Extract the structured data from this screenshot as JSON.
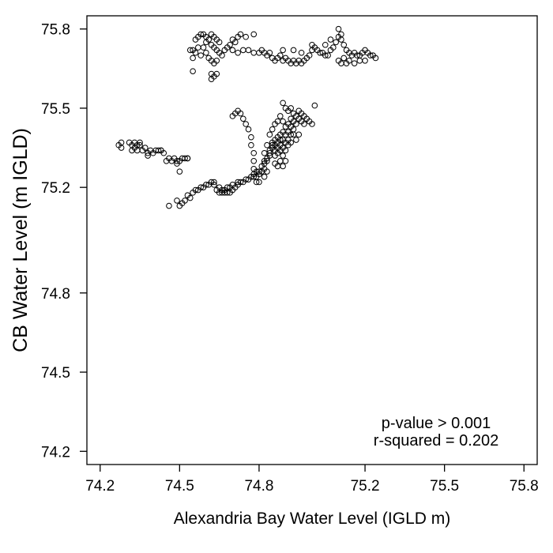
{
  "chart_data": {
    "type": "scatter",
    "title": "",
    "xlabel": "Alexandria Bay Water Level (IGLD m)",
    "ylabel": "CB Water Level (m IGLD)",
    "xlim": [
      74.15,
      75.85
    ],
    "ylim": [
      74.15,
      75.85
    ],
    "xticks": [
      "74.2",
      "74.5",
      "74.8",
      "75.2",
      "75.5",
      "75.8"
    ],
    "yticks": [
      "74.2",
      "74.5",
      "74.8",
      "75.2",
      "75.5",
      "75.8"
    ],
    "grid": false,
    "legend": "none",
    "marker": "open-circle",
    "annotations": [
      "p-value > 0.001",
      "r-squared = 0.202"
    ],
    "series": [
      {
        "points": [
          [
            74.27,
            75.36
          ],
          [
            74.28,
            75.35
          ],
          [
            74.28,
            75.37
          ],
          [
            74.31,
            75.37
          ],
          [
            74.32,
            75.36
          ],
          [
            74.32,
            75.34
          ],
          [
            74.33,
            75.37
          ],
          [
            74.33,
            75.35
          ],
          [
            74.34,
            75.34
          ],
          [
            74.34,
            75.36
          ],
          [
            74.35,
            75.37
          ],
          [
            74.35,
            75.36
          ],
          [
            74.36,
            75.34
          ],
          [
            74.37,
            75.35
          ],
          [
            74.38,
            75.33
          ],
          [
            74.38,
            75.32
          ],
          [
            74.39,
            75.34
          ],
          [
            74.4,
            75.33
          ],
          [
            74.41,
            75.34
          ],
          [
            74.42,
            75.34
          ],
          [
            74.43,
            75.34
          ],
          [
            74.43,
            75.34
          ],
          [
            74.44,
            75.33
          ],
          [
            74.45,
            75.3
          ],
          [
            74.46,
            75.31
          ],
          [
            74.47,
            75.3
          ],
          [
            74.48,
            75.31
          ],
          [
            74.49,
            75.3
          ],
          [
            74.49,
            75.29
          ],
          [
            74.5,
            75.26
          ],
          [
            74.5,
            75.3
          ],
          [
            74.51,
            75.31
          ],
          [
            74.52,
            75.31
          ],
          [
            74.53,
            75.31
          ],
          [
            74.53,
            75.31
          ],
          [
            74.46,
            75.13
          ],
          [
            74.49,
            75.15
          ],
          [
            74.5,
            75.13
          ],
          [
            74.51,
            75.14
          ],
          [
            74.52,
            75.15
          ],
          [
            74.53,
            75.17
          ],
          [
            74.54,
            75.16
          ],
          [
            74.55,
            75.18
          ],
          [
            74.56,
            75.19
          ],
          [
            74.57,
            75.19
          ],
          [
            74.58,
            75.2
          ],
          [
            74.59,
            75.2
          ],
          [
            74.6,
            75.21
          ],
          [
            74.61,
            75.21
          ],
          [
            74.62,
            75.22
          ],
          [
            74.63,
            75.22
          ],
          [
            74.63,
            75.21
          ],
          [
            74.64,
            75.19
          ],
          [
            74.65,
            75.18
          ],
          [
            74.65,
            75.2
          ],
          [
            74.66,
            75.18
          ],
          [
            74.66,
            75.19
          ],
          [
            74.67,
            75.18
          ],
          [
            74.67,
            75.19
          ],
          [
            74.68,
            75.18
          ],
          [
            74.68,
            75.2
          ],
          [
            74.69,
            75.18
          ],
          [
            74.69,
            75.2
          ],
          [
            74.7,
            75.19
          ],
          [
            74.7,
            75.21
          ],
          [
            74.71,
            75.2
          ],
          [
            74.72,
            75.22
          ],
          [
            74.72,
            75.21
          ],
          [
            74.73,
            75.22
          ],
          [
            74.74,
            75.22
          ],
          [
            74.75,
            75.23
          ],
          [
            74.76,
            75.23
          ],
          [
            74.77,
            75.24
          ],
          [
            74.78,
            75.24
          ],
          [
            74.78,
            75.25
          ],
          [
            74.79,
            75.24
          ],
          [
            74.79,
            75.26
          ],
          [
            74.8,
            75.25
          ],
          [
            74.8,
            75.26
          ],
          [
            74.81,
            75.26
          ],
          [
            74.81,
            75.28
          ],
          [
            74.82,
            75.27
          ],
          [
            74.82,
            75.29
          ],
          [
            74.82,
            75.3
          ],
          [
            74.83,
            75.3
          ],
          [
            74.83,
            75.31
          ],
          [
            74.84,
            75.32
          ],
          [
            74.84,
            75.33
          ],
          [
            74.84,
            75.34
          ],
          [
            74.85,
            75.35
          ],
          [
            74.85,
            75.36
          ],
          [
            74.85,
            75.37
          ],
          [
            74.86,
            75.32
          ],
          [
            74.86,
            75.34
          ],
          [
            74.86,
            75.36
          ],
          [
            74.86,
            75.38
          ],
          [
            74.87,
            75.33
          ],
          [
            74.87,
            75.35
          ],
          [
            74.87,
            75.37
          ],
          [
            74.87,
            75.39
          ],
          [
            74.88,
            75.3
          ],
          [
            74.88,
            75.34
          ],
          [
            74.88,
            75.36
          ],
          [
            74.88,
            75.38
          ],
          [
            74.88,
            75.4
          ],
          [
            74.89,
            75.32
          ],
          [
            74.89,
            75.35
          ],
          [
            74.89,
            75.38
          ],
          [
            74.89,
            75.41
          ],
          [
            74.9,
            75.34
          ],
          [
            74.9,
            75.37
          ],
          [
            74.9,
            75.4
          ],
          [
            74.9,
            75.43
          ],
          [
            74.91,
            75.38
          ],
          [
            74.91,
            75.41
          ],
          [
            74.91,
            75.44
          ],
          [
            74.92,
            75.4
          ],
          [
            74.92,
            75.43
          ],
          [
            74.92,
            75.46
          ],
          [
            74.93,
            75.42
          ],
          [
            74.93,
            75.45
          ],
          [
            74.93,
            75.48
          ],
          [
            74.94,
            75.44
          ],
          [
            74.94,
            75.47
          ],
          [
            74.95,
            75.46
          ],
          [
            74.95,
            75.49
          ],
          [
            74.96,
            75.48
          ],
          [
            74.96,
            75.45
          ],
          [
            74.97,
            75.47
          ],
          [
            74.97,
            75.44
          ],
          [
            74.98,
            75.46
          ],
          [
            74.99,
            75.45
          ],
          [
            75.0,
            75.44
          ],
          [
            75.01,
            75.51
          ],
          [
            74.88,
            75.47
          ],
          [
            74.87,
            75.45
          ],
          [
            74.86,
            75.44
          ],
          [
            74.85,
            75.42
          ],
          [
            74.84,
            75.4
          ],
          [
            74.83,
            75.36
          ],
          [
            74.82,
            75.33
          ],
          [
            74.89,
            75.52
          ],
          [
            74.9,
            75.5
          ],
          [
            74.91,
            75.49
          ],
          [
            74.92,
            75.5
          ],
          [
            74.89,
            75.45
          ],
          [
            74.93,
            75.4
          ],
          [
            74.94,
            75.38
          ],
          [
            74.95,
            75.4
          ],
          [
            74.91,
            75.36
          ],
          [
            74.92,
            75.37
          ],
          [
            74.9,
            75.3
          ],
          [
            74.89,
            75.28
          ],
          [
            74.87,
            75.28
          ],
          [
            74.86,
            75.29
          ],
          [
            74.83,
            75.26
          ],
          [
            74.82,
            75.24
          ],
          [
            74.8,
            75.22
          ],
          [
            74.79,
            75.22
          ],
          [
            74.7,
            75.47
          ],
          [
            74.71,
            75.48
          ],
          [
            74.72,
            75.49
          ],
          [
            74.73,
            75.48
          ],
          [
            74.74,
            75.46
          ],
          [
            74.75,
            75.44
          ],
          [
            74.76,
            75.42
          ],
          [
            74.77,
            75.39
          ],
          [
            74.77,
            75.36
          ],
          [
            74.78,
            75.33
          ],
          [
            74.78,
            75.3
          ],
          [
            74.78,
            75.27
          ],
          [
            74.56,
            75.76
          ],
          [
            74.57,
            75.77
          ],
          [
            74.58,
            75.78
          ],
          [
            74.59,
            75.78
          ],
          [
            74.6,
            75.77
          ],
          [
            74.61,
            75.76
          ],
          [
            74.62,
            75.78
          ],
          [
            74.63,
            75.77
          ],
          [
            74.64,
            75.76
          ],
          [
            74.65,
            75.75
          ],
          [
            74.55,
            75.72
          ],
          [
            74.56,
            75.71
          ],
          [
            74.57,
            75.73
          ],
          [
            74.58,
            75.7
          ],
          [
            74.59,
            75.73
          ],
          [
            74.6,
            75.71
          ],
          [
            74.61,
            75.69
          ],
          [
            74.62,
            75.68
          ],
          [
            74.63,
            75.67
          ],
          [
            74.64,
            75.68
          ],
          [
            74.62,
            75.63
          ],
          [
            74.63,
            75.62
          ],
          [
            74.62,
            75.61
          ],
          [
            74.64,
            75.63
          ],
          [
            74.55,
            75.64
          ],
          [
            74.54,
            75.72
          ],
          [
            74.55,
            75.69
          ],
          [
            74.6,
            75.75
          ],
          [
            74.62,
            75.74
          ],
          [
            74.63,
            75.73
          ],
          [
            74.64,
            75.72
          ],
          [
            74.65,
            75.71
          ],
          [
            74.66,
            75.7
          ],
          [
            74.67,
            75.72
          ],
          [
            74.68,
            75.73
          ],
          [
            74.69,
            75.74
          ],
          [
            74.7,
            75.76
          ],
          [
            74.71,
            75.75
          ],
          [
            74.72,
            75.77
          ],
          [
            74.73,
            75.78
          ],
          [
            74.75,
            75.77
          ],
          [
            74.78,
            75.78
          ],
          [
            74.7,
            75.72
          ],
          [
            74.72,
            75.71
          ],
          [
            74.74,
            75.72
          ],
          [
            74.76,
            75.72
          ],
          [
            74.78,
            75.71
          ],
          [
            74.8,
            75.71
          ],
          [
            74.81,
            75.72
          ],
          [
            74.82,
            75.71
          ],
          [
            74.83,
            75.7
          ],
          [
            74.84,
            75.71
          ],
          [
            74.85,
            75.69
          ],
          [
            74.86,
            75.68
          ],
          [
            74.87,
            75.69
          ],
          [
            74.88,
            75.7
          ],
          [
            74.89,
            75.68
          ],
          [
            74.9,
            75.69
          ],
          [
            74.91,
            75.68
          ],
          [
            74.92,
            75.67
          ],
          [
            74.93,
            75.68
          ],
          [
            74.94,
            75.67
          ],
          [
            74.95,
            75.68
          ],
          [
            74.96,
            75.67
          ],
          [
            74.97,
            75.68
          ],
          [
            74.98,
            75.69
          ],
          [
            74.99,
            75.7
          ],
          [
            75.0,
            75.72
          ],
          [
            75.01,
            75.73
          ],
          [
            75.02,
            75.72
          ],
          [
            75.03,
            75.71
          ],
          [
            75.04,
            75.71
          ],
          [
            75.05,
            75.7
          ],
          [
            75.06,
            75.7
          ],
          [
            75.07,
            75.72
          ],
          [
            75.08,
            75.73
          ],
          [
            75.09,
            75.75
          ],
          [
            75.1,
            75.77
          ],
          [
            75.11,
            75.76
          ],
          [
            75.12,
            75.74
          ],
          [
            75.13,
            75.72
          ],
          [
            75.14,
            75.71
          ],
          [
            75.15,
            75.7
          ],
          [
            75.16,
            75.71
          ],
          [
            75.17,
            75.7
          ],
          [
            75.18,
            75.7
          ],
          [
            75.19,
            75.71
          ],
          [
            75.2,
            75.72
          ],
          [
            75.21,
            75.71
          ],
          [
            75.22,
            75.7
          ],
          [
            75.23,
            75.7
          ],
          [
            75.24,
            75.69
          ],
          [
            75.1,
            75.68
          ],
          [
            75.11,
            75.67
          ],
          [
            75.12,
            75.69
          ],
          [
            75.13,
            75.67
          ],
          [
            75.14,
            75.68
          ],
          [
            75.16,
            75.67
          ],
          [
            75.18,
            75.68
          ],
          [
            75.2,
            75.68
          ],
          [
            75.05,
            75.74
          ],
          [
            75.07,
            75.76
          ],
          [
            75.1,
            75.8
          ],
          [
            75.11,
            75.78
          ],
          [
            75.0,
            75.74
          ],
          [
            74.96,
            75.71
          ],
          [
            74.93,
            75.72
          ],
          [
            74.89,
            75.72
          ]
        ]
      }
    ]
  }
}
